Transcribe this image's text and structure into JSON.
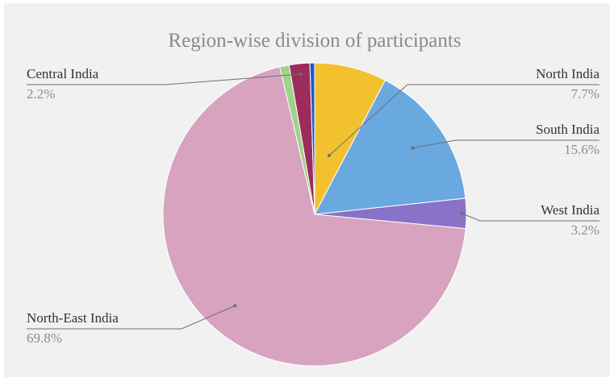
{
  "chart_data": {
    "type": "pie",
    "title": "Region-wise division of participants",
    "slices": [
      {
        "name": "North India",
        "value": 7.7,
        "label": "7.7%",
        "color": "#f2c12e"
      },
      {
        "name": "South India",
        "value": 15.6,
        "label": "15.6%",
        "color": "#6aa8e0"
      },
      {
        "name": "West India",
        "value": 3.2,
        "label": "3.2%",
        "color": "#8a72c9"
      },
      {
        "name": "North-East India",
        "value": 69.8,
        "label": "69.8%",
        "color": "#d7a3bf"
      },
      {
        "name": "",
        "value": 1.0,
        "label": "",
        "color": "#9fd38a"
      },
      {
        "name": "Central India",
        "value": 2.2,
        "label": "2.2%",
        "color": "#9b2c5c"
      },
      {
        "name": "",
        "value": 0.5,
        "label": "",
        "color": "#2358c6"
      }
    ],
    "start_angle_deg": 0,
    "direction": "clockwise",
    "legend": "none"
  }
}
